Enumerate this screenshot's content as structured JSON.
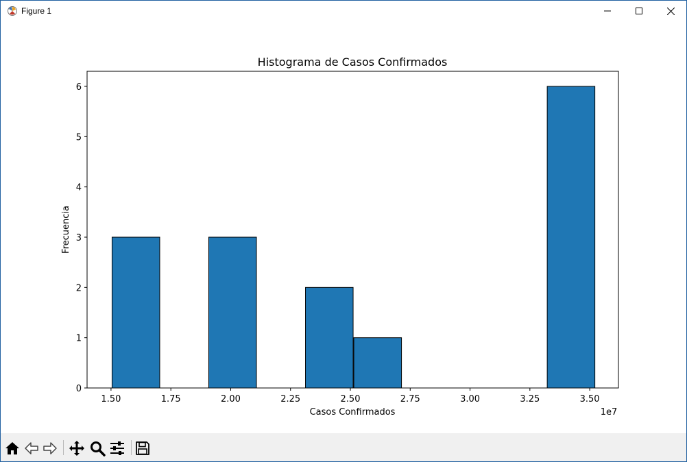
{
  "window": {
    "title": "Figure 1",
    "icon": "matplotlib-icon",
    "controls": [
      "minimize-icon",
      "maximize-icon",
      "close-icon"
    ]
  },
  "toolbar": {
    "buttons": [
      {
        "name": "home-button",
        "icon": "home-icon"
      },
      {
        "name": "back-button",
        "icon": "arrow-left-icon"
      },
      {
        "name": "forward-button",
        "icon": "arrow-right-icon"
      },
      {
        "name": "pan-button",
        "icon": "move-icon"
      },
      {
        "name": "zoom-button",
        "icon": "magnifier-icon"
      },
      {
        "name": "configure-subplots-button",
        "icon": "sliders-icon"
      },
      {
        "name": "save-button",
        "icon": "floppy-disk-icon"
      }
    ]
  },
  "chart_data": {
    "type": "bar",
    "title": "Histograma de Casos Confirmados",
    "xlabel": "Casos Confirmados",
    "ylabel": "Frecuencia",
    "x_offset_label": "1e7",
    "xlim": [
      1.4,
      3.62
    ],
    "ylim": [
      0,
      6.3
    ],
    "xticks": [
      "1.50",
      "1.75",
      "2.00",
      "2.25",
      "2.50",
      "2.75",
      "3.00",
      "3.25",
      "3.50"
    ],
    "yticks": [
      "0",
      "1",
      "2",
      "3",
      "4",
      "5",
      "6"
    ],
    "bins": [
      {
        "x0": 1.503,
        "x1": 1.705,
        "count": 3
      },
      {
        "x0": 1.705,
        "x1": 1.907,
        "count": 0
      },
      {
        "x0": 1.907,
        "x1": 2.109,
        "count": 3
      },
      {
        "x0": 2.109,
        "x1": 2.311,
        "count": 0
      },
      {
        "x0": 2.311,
        "x1": 2.513,
        "count": 2
      },
      {
        "x0": 2.513,
        "x1": 2.715,
        "count": 1
      },
      {
        "x0": 2.715,
        "x1": 2.917,
        "count": 0
      },
      {
        "x0": 2.917,
        "x1": 3.119,
        "count": 0
      },
      {
        "x0": 3.119,
        "x1": 3.321,
        "count": 0
      },
      {
        "x0": 3.321,
        "x1": 3.523,
        "count": 6
      }
    ],
    "bar_color": "#1f77b4",
    "edge_color": "#000000",
    "grid": false
  }
}
